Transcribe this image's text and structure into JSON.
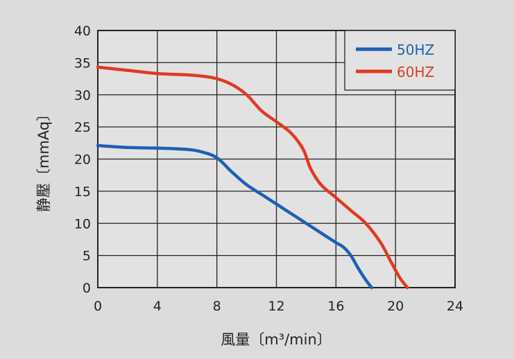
{
  "chart_data": {
    "type": "line",
    "title": "",
    "xlabel": "風量〔m³/min〕",
    "ylabel": "静壓〔mmAq〕",
    "xlim": [
      0,
      24
    ],
    "ylim": [
      0,
      40
    ],
    "xticks": [
      0,
      4,
      8,
      12,
      16,
      20,
      24
    ],
    "yticks": [
      0,
      5,
      10,
      15,
      20,
      25,
      30,
      35,
      40
    ],
    "grid": true,
    "legend_position": "top-right",
    "series": [
      {
        "name": "50HZ",
        "color": "#1f5fb4",
        "x": [
          0,
          2,
          4,
          6,
          7,
          8,
          9,
          10,
          11,
          12,
          13,
          14,
          15,
          16,
          16.5,
          17,
          17.5,
          18,
          18.4
        ],
        "y": [
          22.1,
          21.8,
          21.7,
          21.5,
          21.1,
          20.2,
          18.0,
          16.0,
          14.5,
          13.0,
          11.5,
          10.0,
          8.5,
          7.0,
          6.3,
          5.0,
          3.0,
          1.2,
          0
        ]
      },
      {
        "name": "60HZ",
        "color": "#e03a22",
        "x": [
          0,
          2,
          4,
          6,
          7,
          8,
          9,
          10,
          11,
          12,
          13,
          13.8,
          14.3,
          15,
          16,
          17,
          18,
          19,
          19.7,
          20.3,
          20.8
        ],
        "y": [
          34.3,
          33.8,
          33.3,
          33.1,
          32.9,
          32.5,
          31.6,
          30.0,
          27.5,
          25.8,
          24.0,
          21.5,
          18.5,
          16.0,
          14.0,
          12.0,
          10.0,
          7.0,
          4.0,
          1.5,
          0
        ]
      }
    ]
  }
}
